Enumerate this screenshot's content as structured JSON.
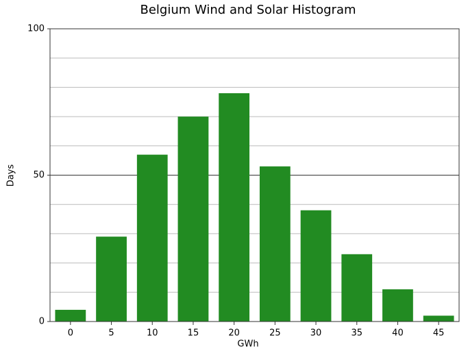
{
  "chart_data": {
    "type": "bar",
    "title": "Belgium Wind and Solar Histogram",
    "x_label": "GWh",
    "y_label": "Days",
    "categories": [
      "0",
      "5",
      "10",
      "15",
      "20",
      "25",
      "30",
      "35",
      "40",
      "45"
    ],
    "values": [
      4,
      29,
      57,
      70,
      78,
      53,
      38,
      23,
      11,
      2
    ],
    "color": "#228b22",
    "ylim": [
      0,
      100
    ],
    "yticks": [
      0,
      50,
      100
    ],
    "minor_yticks": [
      10,
      20,
      30,
      40,
      60,
      70,
      80,
      90
    ],
    "grid": true
  }
}
